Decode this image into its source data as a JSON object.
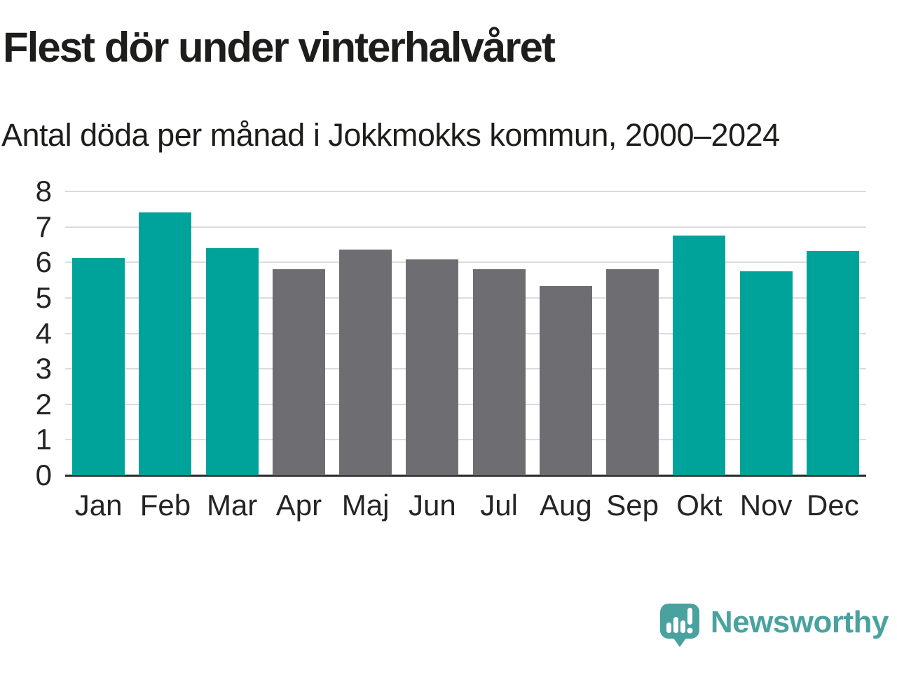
{
  "header": {
    "title": "Flest dör under vinterhalvåret",
    "subtitle": "Antal döda per månad i Jokkmokks kommun, 2000–2024"
  },
  "chart_data": {
    "type": "bar",
    "categories": [
      "Jan",
      "Feb",
      "Mar",
      "Apr",
      "Maj",
      "Jun",
      "Jul",
      "Aug",
      "Sep",
      "Okt",
      "Nov",
      "Dec"
    ],
    "values": [
      6.12,
      7.41,
      6.41,
      5.8,
      6.36,
      6.09,
      5.8,
      5.33,
      5.81,
      6.76,
      5.75,
      6.33
    ],
    "bar_color_keys": [
      "winter",
      "winter",
      "winter",
      "summer",
      "summer",
      "summer",
      "summer",
      "summer",
      "summer",
      "winter",
      "winter",
      "winter"
    ],
    "color_map": {
      "winter": "#00a39a",
      "summer": "#6e6e72"
    },
    "title": "Flest dör under vinterhalvåret",
    "xlabel": "",
    "ylabel": "",
    "ylim": [
      0,
      8
    ],
    "yticks": [
      0,
      1,
      2,
      3,
      4,
      5,
      6,
      7,
      8
    ],
    "grid": true,
    "legend": false,
    "gridline_color": "#dcdcdc",
    "axis_color": "#2b2b2b"
  },
  "footer": {
    "brand": "Newsworthy",
    "brand_color": "#4aa2a0"
  }
}
